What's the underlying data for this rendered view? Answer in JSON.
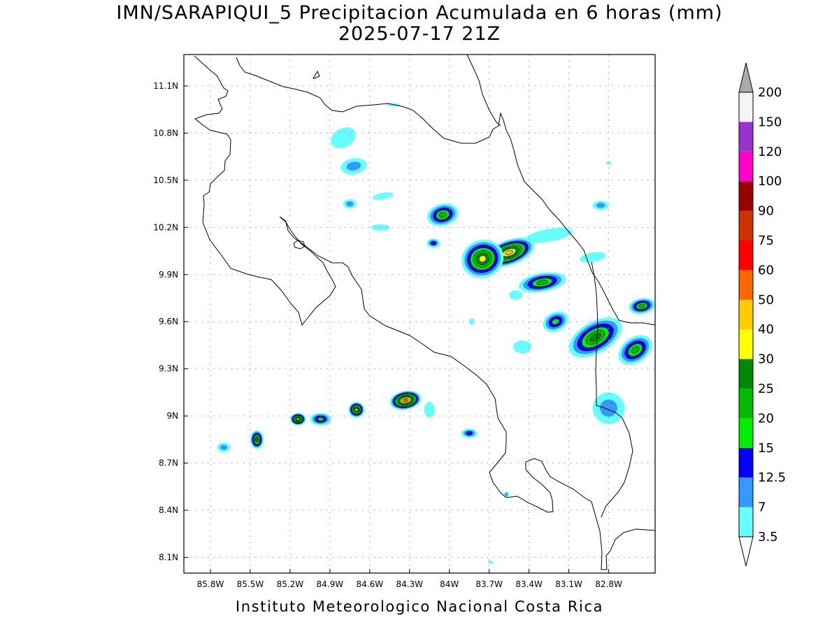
{
  "title": {
    "line1": "IMN/SARAPIQUI_5 Precipitacion Acumulada en 6 horas (mm)",
    "line2": "2025-07-17 21Z"
  },
  "footer": "Instituto Meteorologico Nacional Costa Rica",
  "map": {
    "lon_range": [
      -86.0,
      -82.45
    ],
    "lat_range": [
      8.0,
      11.3
    ],
    "lon_ticks": [
      -85.8,
      -85.5,
      -85.2,
      -84.9,
      -84.6,
      -84.3,
      -84.0,
      -83.7,
      -83.4,
      -83.1,
      -82.8
    ],
    "lon_tick_labels": [
      "85.8W",
      "85.5W",
      "85.2W",
      "84.9W",
      "84.6W",
      "84.3W",
      "84W",
      "83.7W",
      "83.4W",
      "83.1W",
      "82.8W"
    ],
    "lat_ticks": [
      8.1,
      8.4,
      8.7,
      9.0,
      9.3,
      9.6,
      9.9,
      10.2,
      10.5,
      10.8,
      11.1
    ],
    "lat_tick_labels": [
      "8.1N",
      "8.4N",
      "8.7N",
      "9N",
      "9.3N",
      "9.6N",
      "9.9N",
      "10.2N",
      "10.5N",
      "10.8N",
      "11.1N"
    ],
    "grid": true
  },
  "colorbar": {
    "levels": [
      "3.5",
      "7",
      "12.5",
      "15",
      "20",
      "25",
      "30",
      "40",
      "50",
      "60",
      "75",
      "90",
      "100",
      "120",
      "150",
      "200"
    ],
    "colors": [
      "#66ffff",
      "#3399ff",
      "#0000ff",
      "#00ee00",
      "#00bb00",
      "#008800",
      "#ffff00",
      "#ffcc00",
      "#ff6600",
      "#ff0000",
      "#cc3300",
      "#990000",
      "#ff00cc",
      "#9933cc",
      "#f5f5f5"
    ],
    "top_arrow_color": "#aaaaaa",
    "bottom_arrow_color": "#ffffff"
  },
  "precip_cells": [
    {
      "lon": -83.55,
      "lat": 10.04,
      "rx": 0.2,
      "ry": 0.08,
      "angle": -20,
      "max_mm": 45
    },
    {
      "lon": -83.75,
      "lat": 10.0,
      "rx": 0.16,
      "ry": 0.12,
      "angle": -20,
      "max_mm": 32
    },
    {
      "lon": -84.05,
      "lat": 10.28,
      "rx": 0.12,
      "ry": 0.07,
      "angle": -15,
      "max_mm": 22
    },
    {
      "lon": -83.3,
      "lat": 9.85,
      "rx": 0.18,
      "ry": 0.06,
      "angle": -10,
      "max_mm": 20
    },
    {
      "lon": -82.9,
      "lat": 9.5,
      "rx": 0.22,
      "ry": 0.1,
      "angle": -30,
      "max_mm": 26
    },
    {
      "lon": -82.6,
      "lat": 9.42,
      "rx": 0.14,
      "ry": 0.08,
      "angle": -35,
      "max_mm": 22
    },
    {
      "lon": -83.2,
      "lat": 9.6,
      "rx": 0.1,
      "ry": 0.06,
      "angle": -25,
      "max_mm": 16
    },
    {
      "lon": -84.33,
      "lat": 9.1,
      "rx": 0.12,
      "ry": 0.06,
      "angle": -10,
      "max_mm": 50
    },
    {
      "lon": -84.7,
      "lat": 9.04,
      "rx": 0.06,
      "ry": 0.05,
      "angle": -20,
      "max_mm": 30
    },
    {
      "lon": -84.97,
      "lat": 8.98,
      "rx": 0.08,
      "ry": 0.04,
      "angle": 0,
      "max_mm": 16
    },
    {
      "lon": -85.14,
      "lat": 8.98,
      "rx": 0.06,
      "ry": 0.04,
      "angle": 0,
      "max_mm": 30
    },
    {
      "lon": -85.45,
      "lat": 8.85,
      "rx": 0.05,
      "ry": 0.06,
      "angle": 0,
      "max_mm": 28
    },
    {
      "lon": -85.7,
      "lat": 8.8,
      "rx": 0.05,
      "ry": 0.03,
      "angle": 0,
      "max_mm": 8
    },
    {
      "lon": -83.85,
      "lat": 8.89,
      "rx": 0.06,
      "ry": 0.03,
      "angle": 0,
      "max_mm": 13
    },
    {
      "lon": -84.12,
      "lat": 10.1,
      "rx": 0.05,
      "ry": 0.03,
      "angle": 0,
      "max_mm": 13
    },
    {
      "lon": -84.72,
      "lat": 10.59,
      "rx": 0.1,
      "ry": 0.05,
      "angle": -10,
      "max_mm": 9
    },
    {
      "lon": -84.8,
      "lat": 10.77,
      "rx": 0.1,
      "ry": 0.06,
      "angle": -30,
      "max_mm": 6
    },
    {
      "lon": -84.75,
      "lat": 10.35,
      "rx": 0.05,
      "ry": 0.03,
      "angle": 0,
      "max_mm": 8
    },
    {
      "lon": -84.5,
      "lat": 10.4,
      "rx": 0.08,
      "ry": 0.02,
      "angle": -10,
      "max_mm": 4
    },
    {
      "lon": -84.52,
      "lat": 10.2,
      "rx": 0.07,
      "ry": 0.02,
      "angle": 0,
      "max_mm": 4
    },
    {
      "lon": -83.5,
      "lat": 9.77,
      "rx": 0.05,
      "ry": 0.03,
      "angle": 0,
      "max_mm": 4
    },
    {
      "lon": -83.45,
      "lat": 9.44,
      "rx": 0.07,
      "ry": 0.04,
      "angle": 0,
      "max_mm": 4
    },
    {
      "lon": -83.25,
      "lat": 10.15,
      "rx": 0.18,
      "ry": 0.04,
      "angle": -10,
      "max_mm": 5
    },
    {
      "lon": -82.92,
      "lat": 10.01,
      "rx": 0.1,
      "ry": 0.03,
      "angle": -10,
      "max_mm": 5
    },
    {
      "lon": -82.86,
      "lat": 10.34,
      "rx": 0.06,
      "ry": 0.03,
      "angle": 0,
      "max_mm": 9
    },
    {
      "lon": -82.55,
      "lat": 9.7,
      "rx": 0.1,
      "ry": 0.05,
      "angle": -10,
      "max_mm": 20
    },
    {
      "lon": -82.8,
      "lat": 9.05,
      "rx": 0.12,
      "ry": 0.1,
      "angle": 0,
      "max_mm": 8
    },
    {
      "lon": -84.15,
      "lat": 9.04,
      "rx": 0.04,
      "ry": 0.05,
      "angle": 0,
      "max_mm": 5
    },
    {
      "lon": -84.42,
      "lat": 10.98,
      "rx": 0.05,
      "ry": 0.01,
      "angle": 0,
      "max_mm": 4
    },
    {
      "lon": -83.83,
      "lat": 9.6,
      "rx": 0.02,
      "ry": 0.02,
      "angle": 0,
      "max_mm": 4
    },
    {
      "lon": -83.57,
      "lat": 8.5,
      "rx": 0.02,
      "ry": 0.02,
      "angle": 0,
      "max_mm": 8
    },
    {
      "lon": -83.69,
      "lat": 8.07,
      "rx": 0.02,
      "ry": 0.01,
      "angle": 0,
      "max_mm": 4
    },
    {
      "lon": -82.8,
      "lat": 10.61,
      "rx": 0.02,
      "ry": 0.01,
      "angle": 0,
      "max_mm": 4
    }
  ]
}
